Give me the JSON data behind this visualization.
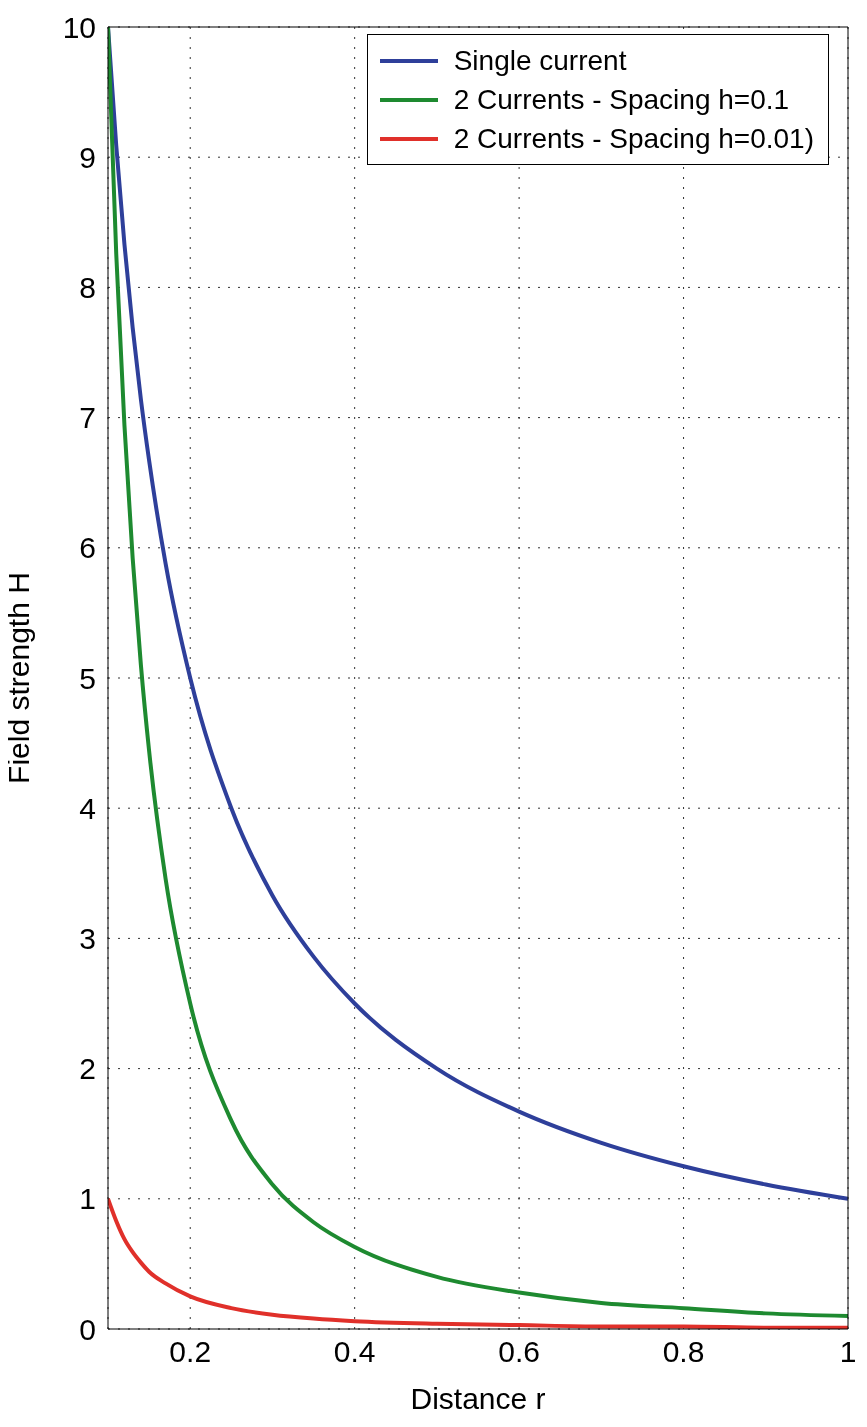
{
  "chart_data": {
    "type": "line",
    "xlabel": "Distance r",
    "ylabel": "Field strength H",
    "x": [
      0.1,
      0.11,
      0.12,
      0.13,
      0.14,
      0.15,
      0.17,
      0.2,
      0.25,
      0.3,
      0.35,
      0.4,
      0.5,
      0.6,
      0.7,
      0.8,
      0.9,
      1
    ],
    "series": [
      {
        "name": "Single current",
        "color": "#2e3f9a",
        "values": [
          10,
          9.09,
          8.33,
          7.69,
          7.14,
          6.67,
          5.88,
          5,
          4,
          3.33,
          2.86,
          2.5,
          2,
          1.67,
          1.43,
          1.25,
          1.11,
          1
        ]
      },
      {
        "name": "2 Currents - Spacing h=0.1",
        "color": "#1e8a30",
        "values": [
          10,
          8.26,
          6.94,
          5.92,
          5.1,
          4.44,
          3.46,
          2.5,
          1.6,
          1.11,
          0.82,
          0.63,
          0.4,
          0.28,
          0.2,
          0.16,
          0.12,
          0.1
        ]
      },
      {
        "name": "2 Currents - Spacing h=0.01)",
        "color": "#e0302a",
        "values": [
          1,
          0.83,
          0.69,
          0.59,
          0.51,
          0.44,
          0.35,
          0.25,
          0.16,
          0.11,
          0.08,
          0.06,
          0.04,
          0.03,
          0.02,
          0.02,
          0.01,
          0.01
        ]
      }
    ],
    "xlim": [
      0.1,
      1
    ],
    "xticks": [
      0.2,
      0.4,
      0.6,
      0.8,
      1
    ],
    "ylim": [
      0,
      10
    ],
    "yticks": [
      0,
      1,
      2,
      3,
      4,
      5,
      6,
      7,
      8,
      9,
      10
    ],
    "grid": true,
    "legend": "top right"
  }
}
